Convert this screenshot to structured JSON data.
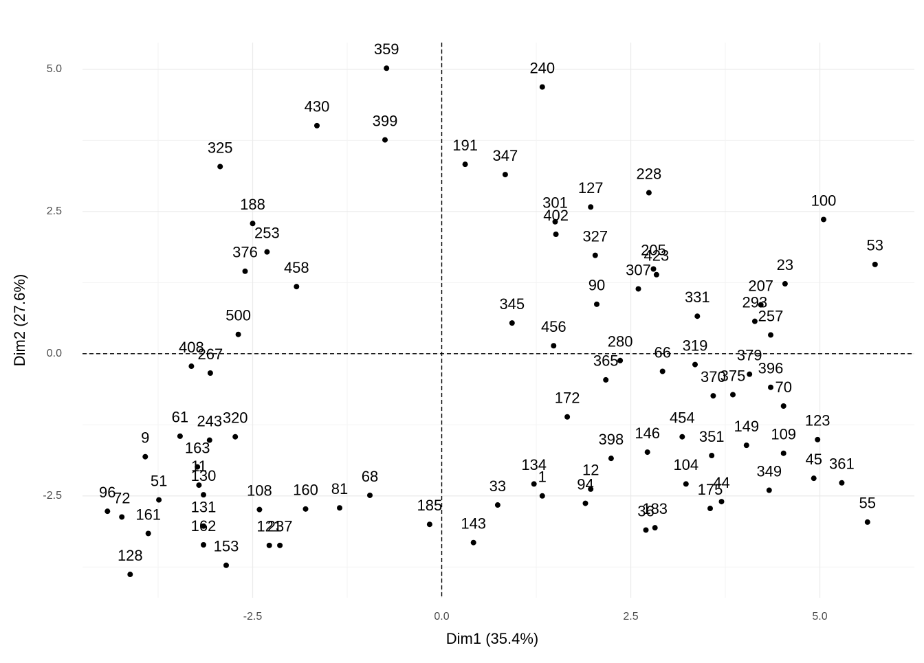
{
  "chart_data": {
    "type": "scatter",
    "x_label": "Dim1 (35.4%)",
    "y_label": "Dim2 (27.6%)",
    "xlim": [
      -4.75,
      6.25
    ],
    "ylim": [
      -4.29,
      5.47
    ],
    "xticks": [
      -2.5,
      {
        "value": 0,
        "label": "0.0"
      },
      2.5,
      {
        "value": 5,
        "label": "5.0"
      }
    ],
    "yticks": [
      {
        "value": -2.5,
        "label": "-2.5"
      },
      {
        "value": 0,
        "label": "0.0"
      },
      2.5,
      {
        "value": 5,
        "label": "5.0"
      }
    ],
    "xminor": [
      -3.75,
      -1.25,
      1.25,
      3.75
    ],
    "yminor": [
      -3.75,
      -1.25,
      1.25,
      3.75
    ],
    "grid": true,
    "hline": 0,
    "vline": 0,
    "color": "#000000",
    "labels": [
      "359",
      "240",
      "430",
      "399",
      "325",
      "191",
      "347",
      "228",
      "100",
      "53",
      "127",
      "188",
      "253",
      "376",
      "301",
      "402",
      "327",
      "205",
      "423",
      "307",
      "23",
      "207",
      "293",
      "257",
      "331",
      "90",
      "458",
      "500",
      "408",
      "267",
      "61",
      "9",
      "243",
      "163",
      "11",
      "130",
      "96",
      "72",
      "51",
      "161",
      "131",
      "162",
      "128",
      "153",
      "121",
      "237",
      "108",
      "160",
      "81",
      "68",
      "185",
      "143",
      "33",
      "134",
      "1",
      "12",
      "94",
      "398",
      "146",
      "183",
      "36",
      "104",
      "175",
      "44",
      "55",
      "361",
      "45",
      "349",
      "109",
      "123",
      "149",
      "454",
      "370",
      "375",
      "319",
      "66",
      "379",
      "396",
      "70",
      "351",
      "280",
      "365",
      "172",
      "345",
      "456",
      "320"
    ],
    "x": [
      -0.73,
      1.33,
      -1.65,
      -0.75,
      -2.93,
      0.31,
      0.84,
      2.74,
      5.05,
      5.73,
      1.97,
      -2.5,
      -2.31,
      -2.6,
      1.5,
      1.51,
      2.03,
      2.8,
      2.84,
      2.6,
      4.54,
      4.22,
      4.14,
      4.35,
      3.38,
      2.05,
      -1.92,
      -2.69,
      -3.31,
      -3.06,
      -3.46,
      -3.92,
      -3.07,
      -3.23,
      -3.21,
      -3.15,
      -4.42,
      -4.23,
      -3.74,
      -3.88,
      -3.15,
      -3.15,
      -4.12,
      -2.85,
      -2.28,
      -2.14,
      -2.41,
      -1.8,
      -1.35,
      -0.95,
      -0.16,
      0.42,
      0.74,
      1.22,
      1.33,
      1.97,
      1.9,
      2.24,
      2.72,
      2.82,
      2.7,
      3.23,
      3.55,
      3.7,
      5.63,
      5.29,
      4.92,
      4.33,
      4.52,
      4.97,
      4.03,
      3.18,
      3.59,
      3.85,
      3.35,
      2.92,
      4.07,
      4.35,
      4.52,
      3.57,
      2.36,
      2.17,
      1.66,
      0.93,
      1.48,
      -2.73
    ],
    "y": [
      5.02,
      4.69,
      4.01,
      3.76,
      3.29,
      3.33,
      3.15,
      2.83,
      2.36,
      1.57,
      2.58,
      2.29,
      1.79,
      1.45,
      2.32,
      2.1,
      1.73,
      1.49,
      1.39,
      1.14,
      1.23,
      0.86,
      0.57,
      0.33,
      0.66,
      0.87,
      1.18,
      0.34,
      -0.22,
      -0.34,
      -1.45,
      -1.81,
      -1.52,
      -1.99,
      -2.31,
      -2.48,
      -2.77,
      -2.87,
      -2.57,
      -3.16,
      -3.03,
      -3.36,
      -3.88,
      -3.72,
      -3.37,
      -3.37,
      -2.74,
      -2.73,
      -2.71,
      -2.49,
      -3.0,
      -3.32,
      -2.66,
      -2.29,
      -2.5,
      -2.38,
      -2.63,
      -1.84,
      -1.73,
      -3.06,
      -3.1,
      -2.29,
      -2.72,
      -2.6,
      -2.96,
      -2.27,
      -2.19,
      -2.4,
      -1.75,
      -1.51,
      -1.61,
      -1.46,
      -0.74,
      -0.72,
      -0.19,
      -0.31,
      -0.36,
      -0.59,
      -0.92,
      -1.79,
      -0.12,
      -0.46,
      -1.11,
      0.54,
      0.14,
      -1.46
    ]
  }
}
